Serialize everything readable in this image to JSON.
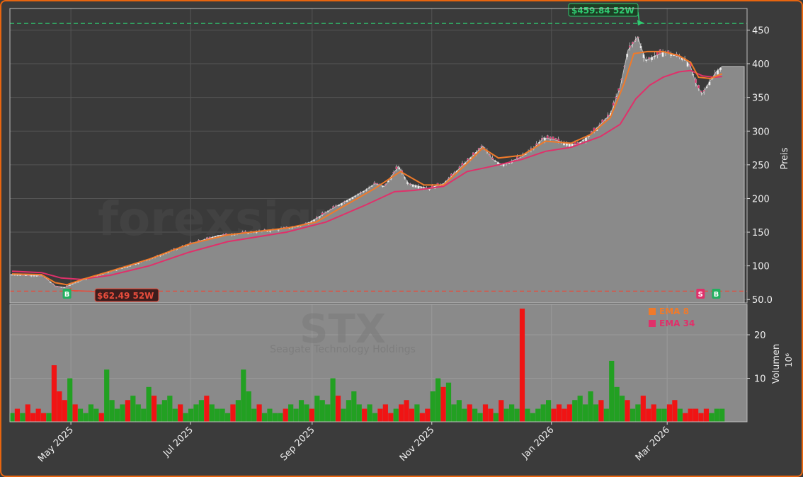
{
  "chart_data": {
    "type": "candlestick",
    "ticker": "STX",
    "company": "Seagate Technology Holdings",
    "watermark": "forexsignale.trade",
    "price_axis_label": "Preis",
    "volume_axis_label": "Volumen",
    "volume_axis_unit": "10⁶",
    "price_ylim": [
      45,
      482
    ],
    "price_ticks": [
      50,
      100,
      150,
      200,
      250,
      300,
      350,
      400,
      450
    ],
    "price_tick_labels": [
      "50.0",
      "100",
      "150",
      "200",
      "250",
      "300",
      "350",
      "400",
      "450"
    ],
    "volume_ylim": [
      0,
      27
    ],
    "volume_ticks": [
      10,
      20
    ],
    "volume_tick_labels": [
      "10",
      "20"
    ],
    "x_ticks": [
      {
        "label": "May 2025",
        "day": 30
      },
      {
        "label": "Jul 2025",
        "day": 91
      },
      {
        "label": "Sep 2025",
        "day": 153
      },
      {
        "label": "Nov 2025",
        "day": 214
      },
      {
        "label": "Jan 2026",
        "day": 275
      },
      {
        "label": "Mar 2026",
        "day": 334
      }
    ],
    "high_52w": {
      "label": "$459.84 52W",
      "value": 459.84
    },
    "low_52w": {
      "label": "$62.49 52W",
      "value": 62.49
    },
    "last_price": 396,
    "legend": [
      {
        "name": "EMA 8",
        "color": "#f07a2a"
      },
      {
        "name": "EMA 34",
        "color": "#e0306a"
      }
    ],
    "signals": [
      {
        "type": "B",
        "day": 28,
        "color": "#22b060"
      },
      {
        "type": "S",
        "day": 351,
        "color": "#e0306a"
      },
      {
        "type": "B",
        "day": 359,
        "color": "#22b060"
      }
    ],
    "price_series": [
      [
        0,
        87
      ],
      [
        16,
        85
      ],
      [
        22,
        70
      ],
      [
        27,
        68
      ],
      [
        31,
        74
      ],
      [
        37,
        80
      ],
      [
        46,
        88
      ],
      [
        60,
        100
      ],
      [
        75,
        115
      ],
      [
        90,
        132
      ],
      [
        105,
        145
      ],
      [
        115,
        148
      ],
      [
        130,
        152
      ],
      [
        145,
        158
      ],
      [
        152,
        165
      ],
      [
        165,
        188
      ],
      [
        180,
        212
      ],
      [
        185,
        222
      ],
      [
        190,
        218
      ],
      [
        197,
        248
      ],
      [
        202,
        222
      ],
      [
        212,
        215
      ],
      [
        220,
        222
      ],
      [
        230,
        250
      ],
      [
        240,
        278
      ],
      [
        245,
        258
      ],
      [
        250,
        250
      ],
      [
        260,
        262
      ],
      [
        266,
        275
      ],
      [
        271,
        290
      ],
      [
        276,
        288
      ],
      [
        282,
        282
      ],
      [
        288,
        280
      ],
      [
        295,
        295
      ],
      [
        300,
        310
      ],
      [
        305,
        325
      ],
      [
        310,
        365
      ],
      [
        314,
        420
      ],
      [
        319,
        440
      ],
      [
        323,
        405
      ],
      [
        328,
        412
      ],
      [
        333,
        418
      ],
      [
        338,
        412
      ],
      [
        343,
        408
      ],
      [
        346,
        395
      ],
      [
        349,
        368
      ],
      [
        352,
        355
      ],
      [
        356,
        375
      ],
      [
        359,
        388
      ],
      [
        362,
        396
      ]
    ],
    "ema8_series": [
      [
        0,
        88
      ],
      [
        15,
        87
      ],
      [
        22,
        75
      ],
      [
        28,
        72
      ],
      [
        36,
        80
      ],
      [
        50,
        92
      ],
      [
        70,
        110
      ],
      [
        90,
        132
      ],
      [
        110,
        146
      ],
      [
        140,
        156
      ],
      [
        155,
        165
      ],
      [
        170,
        190
      ],
      [
        185,
        215
      ],
      [
        198,
        240
      ],
      [
        210,
        220
      ],
      [
        220,
        220
      ],
      [
        232,
        252
      ],
      [
        240,
        275
      ],
      [
        248,
        260
      ],
      [
        260,
        264
      ],
      [
        272,
        285
      ],
      [
        285,
        282
      ],
      [
        295,
        295
      ],
      [
        305,
        320
      ],
      [
        312,
        370
      ],
      [
        317,
        415
      ],
      [
        324,
        418
      ],
      [
        332,
        418
      ],
      [
        340,
        412
      ],
      [
        346,
        402
      ],
      [
        350,
        380
      ],
      [
        356,
        378
      ],
      [
        362,
        385
      ]
    ],
    "ema34_series": [
      [
        0,
        92
      ],
      [
        15,
        90
      ],
      [
        25,
        82
      ],
      [
        35,
        80
      ],
      [
        50,
        86
      ],
      [
        70,
        100
      ],
      [
        90,
        120
      ],
      [
        110,
        136
      ],
      [
        140,
        150
      ],
      [
        160,
        165
      ],
      [
        180,
        190
      ],
      [
        195,
        210
      ],
      [
        205,
        212
      ],
      [
        220,
        218
      ],
      [
        232,
        240
      ],
      [
        245,
        248
      ],
      [
        260,
        258
      ],
      [
        272,
        270
      ],
      [
        285,
        276
      ],
      [
        300,
        292
      ],
      [
        310,
        310
      ],
      [
        318,
        348
      ],
      [
        325,
        368
      ],
      [
        332,
        380
      ],
      [
        340,
        388
      ],
      [
        346,
        390
      ],
      [
        352,
        382
      ],
      [
        358,
        380
      ],
      [
        362,
        381
      ]
    ],
    "volume_seeds": [
      2,
      3,
      2,
      4,
      2,
      3,
      2,
      2,
      13,
      7,
      5,
      10,
      4,
      3,
      2,
      4,
      3,
      2,
      12,
      5,
      3,
      4,
      5,
      6,
      4,
      3,
      8,
      6,
      4,
      5,
      6,
      3,
      4,
      2,
      3,
      4,
      5,
      6,
      4,
      3,
      3,
      2,
      4,
      5,
      12,
      7,
      3,
      4,
      2,
      3,
      2,
      2,
      3,
      4,
      3,
      5,
      4,
      3,
      6,
      5,
      4,
      10,
      6,
      3,
      5,
      7,
      4,
      3,
      4,
      2,
      3,
      4,
      2,
      3,
      4,
      5,
      3,
      4,
      2,
      3,
      7,
      10,
      8,
      9,
      4,
      5,
      3,
      4,
      3,
      2,
      4,
      3,
      2,
      5,
      3,
      4,
      3,
      26,
      3,
      2,
      3,
      4,
      5,
      3,
      4,
      3,
      4,
      5,
      6,
      4,
      7,
      4,
      5,
      3,
      14,
      8,
      6,
      5,
      3,
      4,
      6,
      3,
      4,
      3,
      3,
      4,
      5,
      3,
      2,
      3,
      3,
      2,
      3,
      2,
      3,
      3
    ]
  }
}
